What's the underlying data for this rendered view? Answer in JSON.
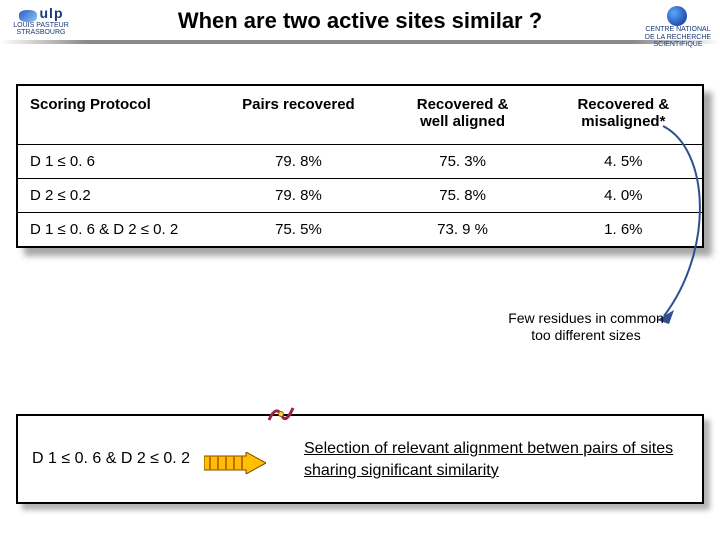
{
  "title": "When are two active sites similar ?",
  "logo_left": {
    "abbr": "ulp",
    "line1": "LOUIS PASTEUR",
    "line2": "STRASBOURG"
  },
  "logo_right": {
    "line1": "CENTRE NATIONAL",
    "line2": "DE LA RECHERCHE",
    "line3": "SCIENTIFIQUE"
  },
  "table": {
    "headers": [
      "Scoring Protocol",
      "Pairs recovered",
      "Recovered &\nwell aligned",
      "Recovered &\nmisaligned*"
    ],
    "rows": [
      [
        "D 1 ≤ 0. 6",
        "79. 8%",
        "75. 3%",
        "4. 5%"
      ],
      [
        "D 2 ≤ 0.2",
        "79. 8%",
        "75. 8%",
        "4. 0%"
      ],
      [
        "D 1 ≤ 0. 6 & D 2 ≤ 0. 2",
        "75. 5%",
        "73. 9 %",
        "1. 6%"
      ]
    ],
    "col_widths_pct": [
      29,
      24,
      24,
      23
    ],
    "border_color": "#000000",
    "header_fontsize": 15,
    "cell_fontsize": 15
  },
  "sidenote": {
    "line1": "Few residues in common",
    "line2": "too different sizes"
  },
  "bottom": {
    "label": "D 1 ≤ 0. 6 & D 2 ≤ 0. 2",
    "text": "Selection of relevant alignment betwen pairs of sites sharing significant similarity"
  },
  "colors": {
    "arrow_stroke": "#2f4f8f",
    "fat_arrow_fill": "#ffc000",
    "fat_arrow_stripe": "#cc6600",
    "background": "#ffffff"
  }
}
